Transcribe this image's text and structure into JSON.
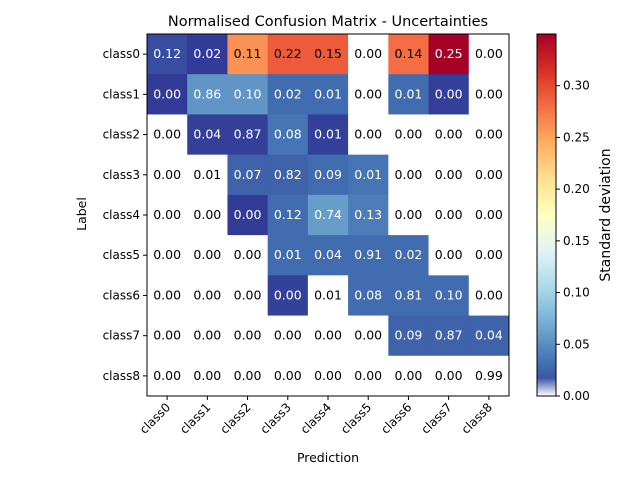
{
  "chart_data": {
    "type": "heatmap",
    "title": "Normalised Confusion Matrix - Uncertainties",
    "xlabel": "Prediction",
    "ylabel": "Label",
    "x_categories": [
      "class0",
      "class1",
      "class2",
      "class3",
      "class4",
      "class5",
      "class6",
      "class7",
      "class8"
    ],
    "y_categories": [
      "class0",
      "class1",
      "class2",
      "class3",
      "class4",
      "class5",
      "class6",
      "class7",
      "class8"
    ],
    "cell_labels": [
      [
        "0.12",
        "0.02",
        "0.11",
        "0.22",
        "0.15",
        "0.00",
        "0.14",
        "0.25",
        "0.00"
      ],
      [
        "0.00",
        "0.86",
        "0.10",
        "0.02",
        "0.01",
        "0.00",
        "0.01",
        "0.00",
        "0.00"
      ],
      [
        "0.00",
        "0.04",
        "0.87",
        "0.08",
        "0.01",
        "0.00",
        "0.00",
        "0.00",
        "0.00"
      ],
      [
        "0.00",
        "0.01",
        "0.07",
        "0.82",
        "0.09",
        "0.01",
        "0.00",
        "0.00",
        "0.00"
      ],
      [
        "0.00",
        "0.00",
        "0.00",
        "0.12",
        "0.74",
        "0.13",
        "0.00",
        "0.00",
        "0.00"
      ],
      [
        "0.00",
        "0.00",
        "0.00",
        "0.01",
        "0.04",
        "0.91",
        "0.02",
        "0.00",
        "0.00"
      ],
      [
        "0.00",
        "0.00",
        "0.00",
        "0.00",
        "0.01",
        "0.08",
        "0.81",
        "0.10",
        "0.00"
      ],
      [
        "0.00",
        "0.00",
        "0.00",
        "0.00",
        "0.00",
        "0.00",
        "0.09",
        "0.87",
        "0.04"
      ],
      [
        "0.00",
        "0.00",
        "0.00",
        "0.00",
        "0.00",
        "0.00",
        "0.00",
        "0.00",
        "0.99"
      ]
    ],
    "uncertainty_values": [
      [
        0.012,
        0.003,
        0.26,
        0.29,
        0.29,
        0.0,
        0.28,
        0.35,
        0.0
      ],
      [
        0.003,
        0.055,
        0.055,
        0.03,
        0.03,
        0.0,
        0.03,
        0.005,
        0.0
      ],
      [
        0.0,
        0.005,
        0.005,
        0.035,
        0.005,
        0.0,
        0.0,
        0.0,
        0.0
      ],
      [
        0.0,
        0.0,
        0.025,
        0.025,
        0.03,
        0.035,
        0.0,
        0.0,
        0.0
      ],
      [
        0.0,
        0.0,
        0.003,
        0.03,
        0.06,
        0.04,
        0.0,
        0.0,
        0.0
      ],
      [
        0.0,
        0.0,
        0.0,
        0.03,
        0.03,
        0.03,
        0.03,
        0.0,
        0.0
      ],
      [
        0.0,
        0.0,
        0.0,
        0.006,
        0.0,
        0.03,
        0.03,
        0.03,
        0.0
      ],
      [
        0.0,
        0.0,
        0.0,
        0.0,
        0.0,
        0.0,
        0.025,
        0.025,
        0.025
      ],
      [
        0.0,
        0.0,
        0.0,
        0.0,
        0.0,
        0.0,
        0.0,
        0.0,
        0.0
      ]
    ],
    "colorbar": {
      "label": "Standard deviation",
      "range": [
        0.0,
        0.35
      ],
      "ticks": [
        "0.00",
        "0.05",
        "0.10",
        "0.15",
        "0.20",
        "0.25",
        "0.30"
      ],
      "colormap": "RdYlBu_r",
      "under_color": "#ffffff"
    },
    "cell_value_text_threshold": 0.06
  }
}
